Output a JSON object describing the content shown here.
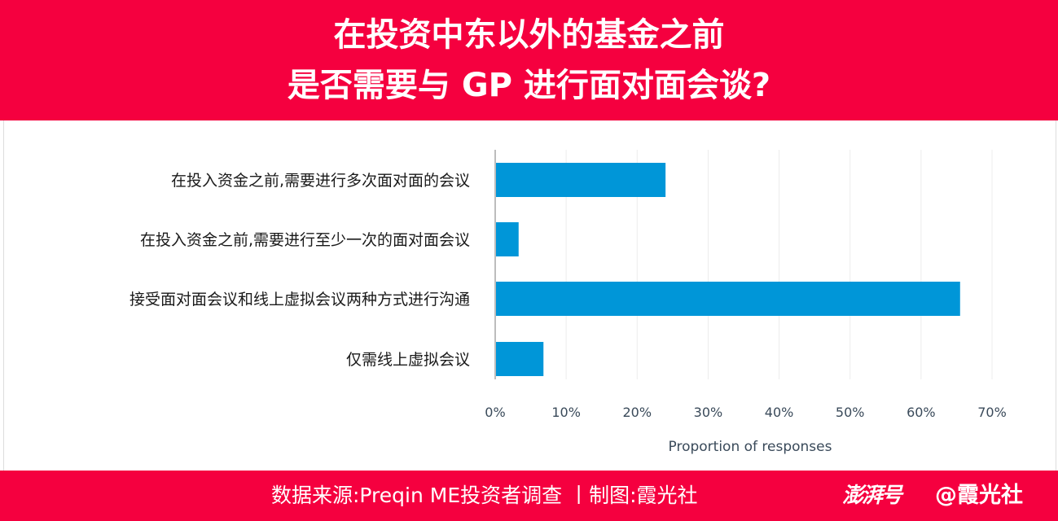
{
  "header": {
    "title_line1": "在投资中东以外的基金之前",
    "title_line2": "是否需要与 GP 进行面对面会谈?"
  },
  "footer": {
    "source": "数据来源:Preqin ME投资者调查 丨制图:霞光社",
    "logo": "澎湃号",
    "handle": "@霞光社"
  },
  "colors": {
    "accent": "#f5003f",
    "bar": "#0096d8"
  },
  "chart_data": {
    "type": "bar",
    "orientation": "horizontal",
    "categories": [
      "在投入资金之前,需要进行多次面对面的会议",
      "在投入资金之前,需要进行至少一次的面对面会议",
      "接受面对面会议和线上虚拟会议两种方式进行沟通",
      "仅需线上虚拟会议"
    ],
    "values": [
      24,
      3.3,
      65.5,
      6.8
    ],
    "xlabel": "Proportion of responses",
    "xlim": [
      0,
      70
    ],
    "xticks": [
      "0%",
      "10%",
      "20%",
      "30%",
      "40%",
      "50%",
      "60%",
      "70%"
    ],
    "grid": true
  }
}
